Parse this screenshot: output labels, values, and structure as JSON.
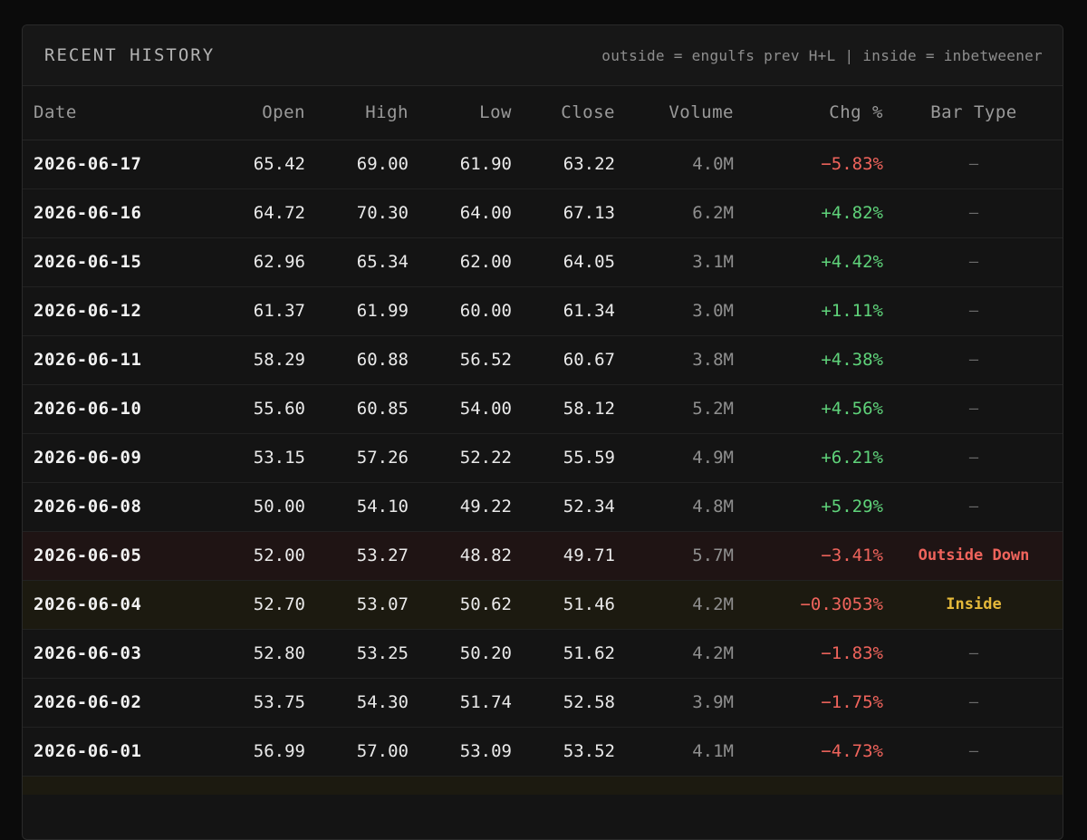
{
  "header": {
    "title": "RECENT HISTORY",
    "legend": "outside = engulfs prev H+L | inside = inbetweener"
  },
  "columns": [
    "Date",
    "Open",
    "High",
    "Low",
    "Close",
    "Volume",
    "Chg %",
    "Bar Type"
  ],
  "rows": [
    {
      "date": "2026-06-17",
      "open": "65.42",
      "high": "69.00",
      "low": "61.90",
      "close": "63.22",
      "volume": "4.0M",
      "chg": "−5.83%",
      "dir": "neg",
      "type": "—",
      "kind": ""
    },
    {
      "date": "2026-06-16",
      "open": "64.72",
      "high": "70.30",
      "low": "64.00",
      "close": "67.13",
      "volume": "6.2M",
      "chg": "+4.82%",
      "dir": "pos",
      "type": "—",
      "kind": ""
    },
    {
      "date": "2026-06-15",
      "open": "62.96",
      "high": "65.34",
      "low": "62.00",
      "close": "64.05",
      "volume": "3.1M",
      "chg": "+4.42%",
      "dir": "pos",
      "type": "—",
      "kind": ""
    },
    {
      "date": "2026-06-12",
      "open": "61.37",
      "high": "61.99",
      "low": "60.00",
      "close": "61.34",
      "volume": "3.0M",
      "chg": "+1.11%",
      "dir": "pos",
      "type": "—",
      "kind": ""
    },
    {
      "date": "2026-06-11",
      "open": "58.29",
      "high": "60.88",
      "low": "56.52",
      "close": "60.67",
      "volume": "3.8M",
      "chg": "+4.38%",
      "dir": "pos",
      "type": "—",
      "kind": ""
    },
    {
      "date": "2026-06-10",
      "open": "55.60",
      "high": "60.85",
      "low": "54.00",
      "close": "58.12",
      "volume": "5.2M",
      "chg": "+4.56%",
      "dir": "pos",
      "type": "—",
      "kind": ""
    },
    {
      "date": "2026-06-09",
      "open": "53.15",
      "high": "57.26",
      "low": "52.22",
      "close": "55.59",
      "volume": "4.9M",
      "chg": "+6.21%",
      "dir": "pos",
      "type": "—",
      "kind": ""
    },
    {
      "date": "2026-06-08",
      "open": "50.00",
      "high": "54.10",
      "low": "49.22",
      "close": "52.34",
      "volume": "4.8M",
      "chg": "+5.29%",
      "dir": "pos",
      "type": "—",
      "kind": ""
    },
    {
      "date": "2026-06-05",
      "open": "52.00",
      "high": "53.27",
      "low": "48.82",
      "close": "49.71",
      "volume": "5.7M",
      "chg": "−3.41%",
      "dir": "neg",
      "type": "Outside Down",
      "kind": "outside"
    },
    {
      "date": "2026-06-04",
      "open": "52.70",
      "high": "53.07",
      "low": "50.62",
      "close": "51.46",
      "volume": "4.2M",
      "chg": "−0.3053%",
      "dir": "neg",
      "type": "Inside",
      "kind": "inside"
    },
    {
      "date": "2026-06-03",
      "open": "52.80",
      "high": "53.25",
      "low": "50.20",
      "close": "51.62",
      "volume": "4.2M",
      "chg": "−1.83%",
      "dir": "neg",
      "type": "—",
      "kind": ""
    },
    {
      "date": "2026-06-02",
      "open": "53.75",
      "high": "54.30",
      "low": "51.74",
      "close": "52.58",
      "volume": "3.9M",
      "chg": "−1.75%",
      "dir": "neg",
      "type": "—",
      "kind": ""
    },
    {
      "date": "2026-06-01",
      "open": "56.99",
      "high": "57.00",
      "low": "53.09",
      "close": "53.52",
      "volume": "4.1M",
      "chg": "−4.73%",
      "dir": "neg",
      "type": "—",
      "kind": ""
    }
  ],
  "colors": {
    "positive": "#5fd37a",
    "negative": "#f0645c",
    "inside": "#e5b93a",
    "outside_row_bg": "#1f1414",
    "inside_row_bg": "#1c1a10"
  }
}
